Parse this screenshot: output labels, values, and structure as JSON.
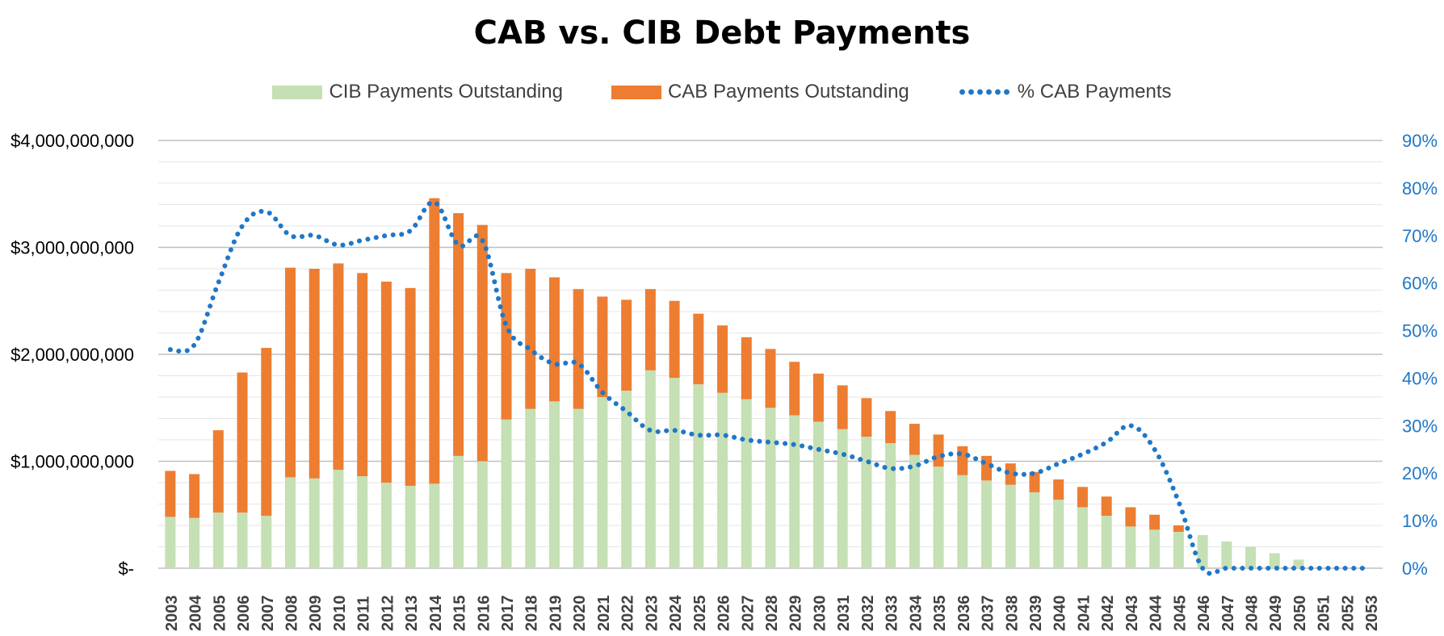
{
  "chart_data": {
    "type": "bar",
    "title": "CAB vs. CIB Debt Payments",
    "categories": [
      "2003",
      "2004",
      "2005",
      "2006",
      "2007",
      "2008",
      "2009",
      "2010",
      "2011",
      "2012",
      "2013",
      "2014",
      "2015",
      "2016",
      "2017",
      "2018",
      "2019",
      "2020",
      "2021",
      "2022",
      "2023",
      "2024",
      "2025",
      "2026",
      "2027",
      "2028",
      "2029",
      "2030",
      "2031",
      "2032",
      "2033",
      "2034",
      "2035",
      "2036",
      "2037",
      "2038",
      "2039",
      "2040",
      "2041",
      "2042",
      "2043",
      "2044",
      "2045",
      "2046",
      "2047",
      "2048",
      "2049",
      "2050",
      "2051",
      "2052",
      "2053"
    ],
    "stacked": true,
    "series": [
      {
        "name": "CIB Payments Outstanding",
        "type": "bar",
        "color": "#c5e0b4",
        "axis": "left",
        "values": [
          480000000,
          470000000,
          520000000,
          520000000,
          490000000,
          850000000,
          840000000,
          920000000,
          860000000,
          800000000,
          770000000,
          790000000,
          1050000000,
          1000000000,
          1390000000,
          1490000000,
          1560000000,
          1490000000,
          1600000000,
          1660000000,
          1850000000,
          1780000000,
          1720000000,
          1640000000,
          1580000000,
          1500000000,
          1430000000,
          1370000000,
          1300000000,
          1230000000,
          1170000000,
          1060000000,
          950000000,
          870000000,
          820000000,
          780000000,
          710000000,
          640000000,
          570000000,
          490000000,
          390000000,
          360000000,
          340000000,
          310000000,
          250000000,
          200000000,
          140000000,
          80000000,
          0,
          0,
          0
        ]
      },
      {
        "name": "CAB Payments Outstanding",
        "type": "bar",
        "color": "#ed7d31",
        "axis": "left",
        "values": [
          430000000,
          410000000,
          770000000,
          1310000000,
          1570000000,
          1960000000,
          1960000000,
          1930000000,
          1900000000,
          1880000000,
          1850000000,
          2670000000,
          2270000000,
          2210000000,
          1370000000,
          1310000000,
          1160000000,
          1120000000,
          940000000,
          850000000,
          760000000,
          720000000,
          660000000,
          630000000,
          580000000,
          550000000,
          500000000,
          450000000,
          410000000,
          360000000,
          300000000,
          290000000,
          300000000,
          270000000,
          230000000,
          200000000,
          190000000,
          190000000,
          190000000,
          180000000,
          180000000,
          140000000,
          60000000,
          0,
          0,
          0,
          0,
          0,
          0,
          0,
          0
        ]
      },
      {
        "name": "% CAB Payments",
        "type": "line",
        "style": "dotted",
        "color": "#1f77c8",
        "axis": "right",
        "values": [
          0.46,
          0.47,
          0.6,
          0.72,
          0.75,
          0.7,
          0.7,
          0.68,
          0.69,
          0.7,
          0.71,
          0.77,
          0.68,
          0.69,
          0.51,
          0.46,
          0.43,
          0.43,
          0.37,
          0.33,
          0.29,
          0.29,
          0.28,
          0.28,
          0.27,
          0.265,
          0.26,
          0.25,
          0.24,
          0.225,
          0.21,
          0.215,
          0.235,
          0.24,
          0.22,
          0.2,
          0.2,
          0.22,
          0.24,
          0.265,
          0.3,
          0.25,
          0.14,
          0,
          0,
          0,
          0,
          0,
          0,
          0,
          0
        ]
      }
    ],
    "y_left": {
      "min": 0,
      "max": 4000000000,
      "ticks": [
        0,
        1000000000,
        2000000000,
        3000000000,
        4000000000
      ],
      "tick_labels": [
        "$-",
        "$1,000,000,000",
        "$2,000,000,000",
        "$3,000,000,000",
        "$4,000,000,000"
      ]
    },
    "y_right": {
      "min": 0,
      "max": 0.9,
      "ticks": [
        0,
        0.1,
        0.2,
        0.3,
        0.4,
        0.5,
        0.6,
        0.7,
        0.8,
        0.9
      ],
      "tick_labels": [
        "0%",
        "10%",
        "20%",
        "30%",
        "40%",
        "50%",
        "60%",
        "70%",
        "80%",
        "90%"
      ]
    },
    "grid": true,
    "legend_position": "top"
  }
}
